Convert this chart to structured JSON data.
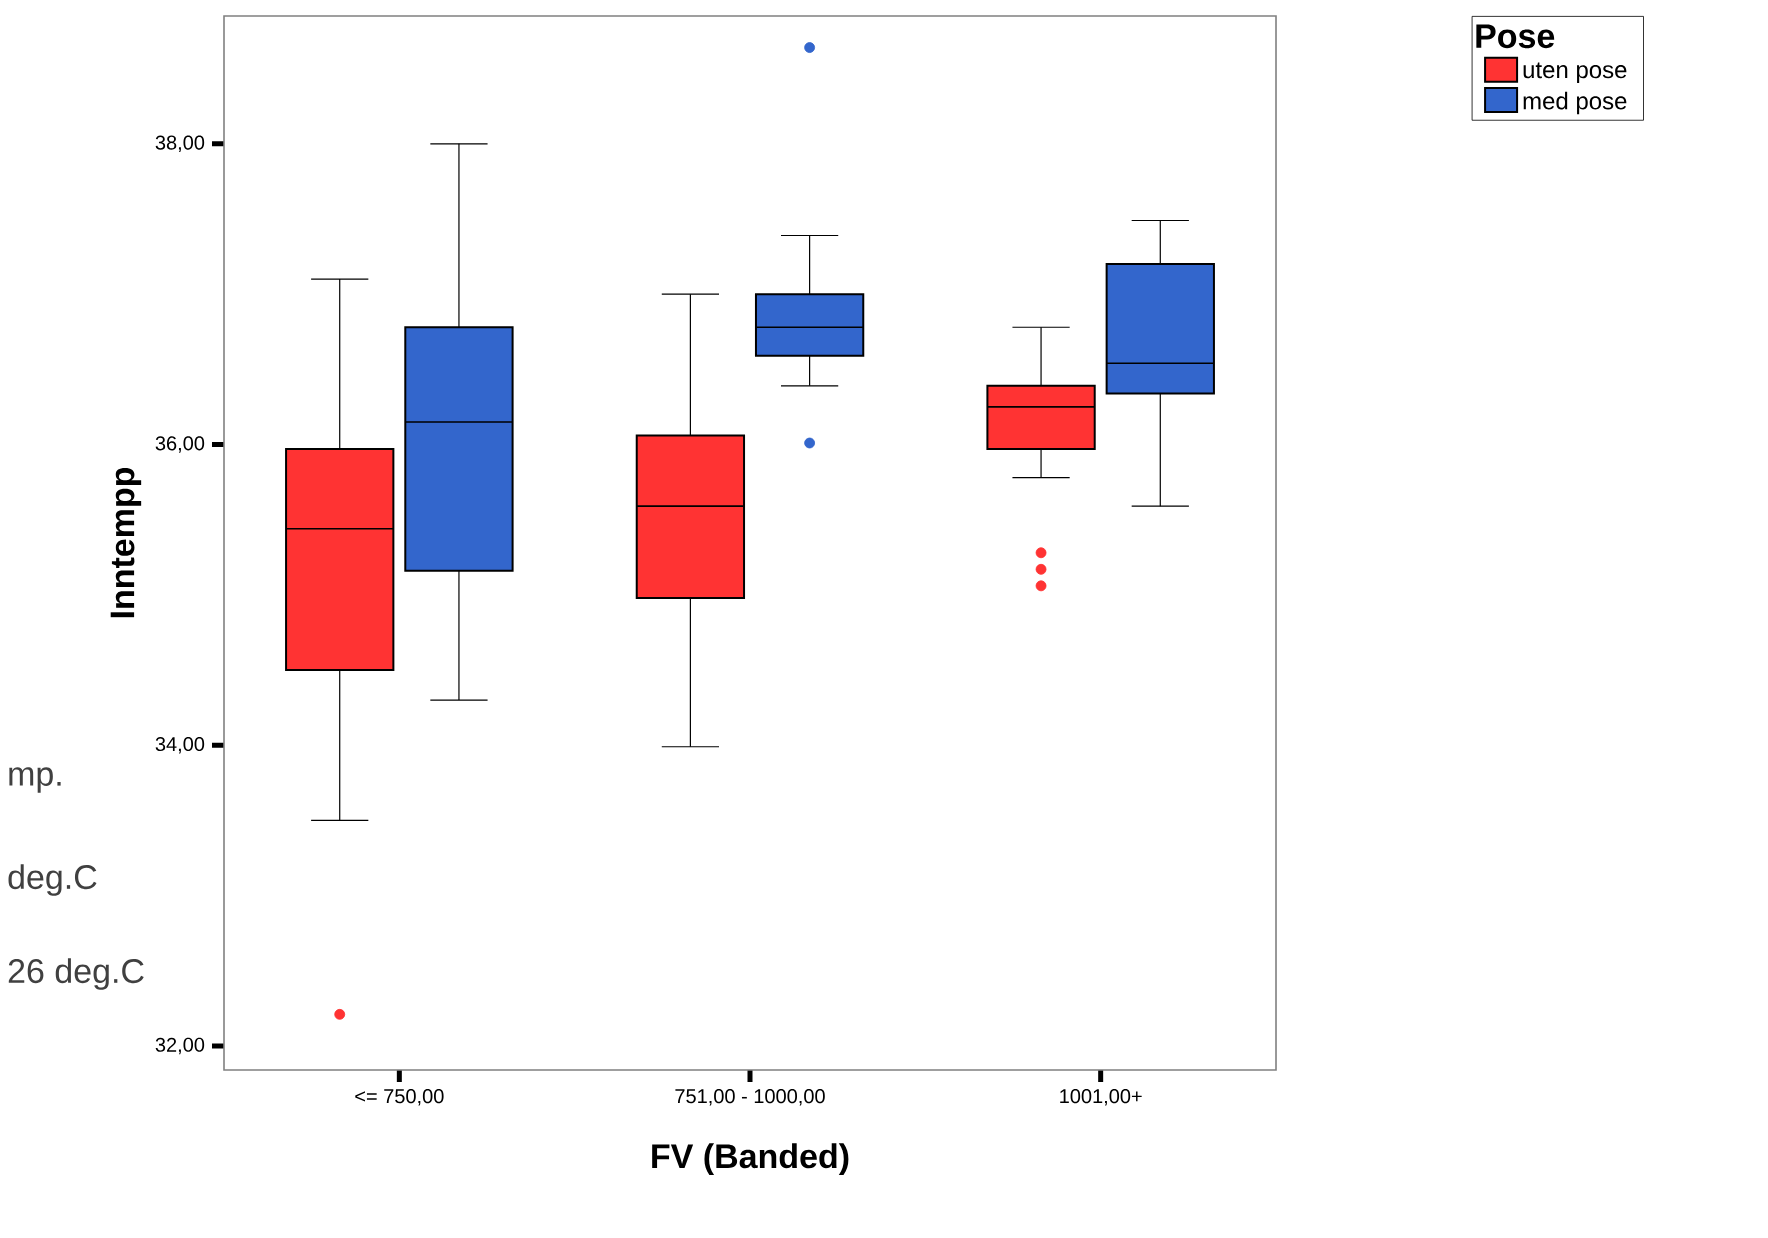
{
  "chart_data": {
    "type": "box",
    "xlabel": "FV (Banded)",
    "ylabel": "Inntempp",
    "legend_title": "Pose",
    "legend": "top right",
    "marker": "circle",
    "categories": [
      "<= 750,00",
      "751,00 - 1000,00",
      "1001,00+"
    ],
    "ylim": [
      31.84,
      38.85
    ],
    "yticks": [
      {
        "value": 32,
        "label": "32,00"
      },
      {
        "value": 34,
        "label": "34,00"
      },
      {
        "value": 36,
        "label": "36,00"
      },
      {
        "value": 38,
        "label": "38,00"
      }
    ],
    "annotations": [
      "mp.",
      "deg.C",
      "26 deg.C"
    ],
    "series": [
      {
        "name": "uten pose",
        "color": "#ff3333",
        "boxes": [
          {
            "low": 33.5,
            "q1": 34.5,
            "median": 35.44,
            "q3": 35.97,
            "high": 37.1,
            "outliers": [
              32.21
            ]
          },
          {
            "low": 33.99,
            "q1": 34.98,
            "median": 35.59,
            "q3": 36.06,
            "high": 37.0
          },
          {
            "low": 35.78,
            "q1": 35.97,
            "median": 36.25,
            "q3": 36.39,
            "high": 36.78,
            "outliers": [
              35.28,
              35.17,
              35.06
            ]
          }
        ]
      },
      {
        "name": "med pose",
        "color": "#3366cc",
        "boxes": [
          {
            "low": 34.3,
            "q1": 35.16,
            "median": 36.15,
            "q3": 36.78,
            "high": 38.0
          },
          {
            "low": 36.39,
            "q1": 36.59,
            "median": 36.78,
            "q3": 37.0,
            "high": 37.39,
            "outliers": [
              38.64,
              36.01
            ]
          },
          {
            "low": 35.59,
            "q1": 36.34,
            "median": 36.54,
            "q3": 37.2,
            "high": 37.49
          }
        ]
      }
    ]
  }
}
